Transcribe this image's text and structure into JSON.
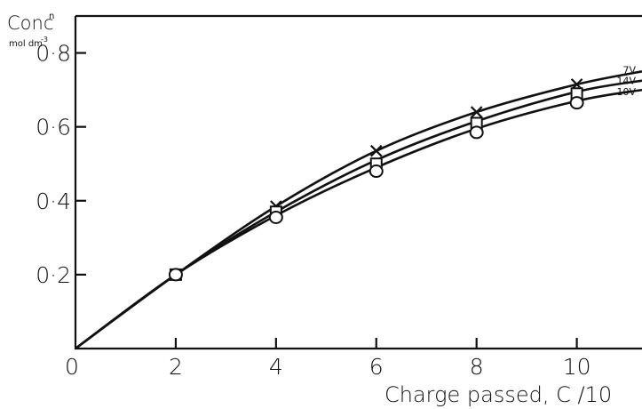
{
  "chart_data": {
    "type": "line",
    "ylabel": "Conc",
    "ylabel_superscript": "n",
    "yunit": "mol dm",
    "yunit_superscript": "-3",
    "xlabel": "Charge passed, C  /10",
    "xlim": [
      0,
      11.3
    ],
    "ylim": [
      0,
      0.9
    ],
    "x_ticks": [
      "0",
      "2",
      "4",
      "6",
      "8",
      "10"
    ],
    "y_ticks": [
      {
        "value": 0.2,
        "label": "0·2"
      },
      {
        "value": 0.4,
        "label": "0·4"
      },
      {
        "value": 0.6,
        "label": "0·6"
      },
      {
        "value": 0.8,
        "label": "0·8"
      }
    ],
    "grid": false,
    "series": [
      {
        "name": "7V",
        "marker": "x",
        "points": [
          {
            "x": 2,
            "y": 0.2
          },
          {
            "x": 4,
            "y": 0.385
          },
          {
            "x": 6,
            "y": 0.535
          },
          {
            "x": 8,
            "y": 0.64
          },
          {
            "x": 10,
            "y": 0.715
          }
        ],
        "curve": [
          {
            "x": 0,
            "y": 0
          },
          {
            "x": 2,
            "y": 0.2
          },
          {
            "x": 4,
            "y": 0.385
          },
          {
            "x": 6,
            "y": 0.535
          },
          {
            "x": 8,
            "y": 0.64
          },
          {
            "x": 10,
            "y": 0.715
          },
          {
            "x": 11.3,
            "y": 0.75
          }
        ]
      },
      {
        "name": "14V",
        "marker": "square",
        "points": [
          {
            "x": 2,
            "y": 0.2
          },
          {
            "x": 4,
            "y": 0.37
          },
          {
            "x": 6,
            "y": 0.5
          },
          {
            "x": 8,
            "y": 0.61
          },
          {
            "x": 10,
            "y": 0.69
          }
        ],
        "curve": [
          {
            "x": 0,
            "y": 0
          },
          {
            "x": 2,
            "y": 0.2
          },
          {
            "x": 4,
            "y": 0.37
          },
          {
            "x": 6,
            "y": 0.51
          },
          {
            "x": 8,
            "y": 0.615
          },
          {
            "x": 10,
            "y": 0.695
          },
          {
            "x": 11.3,
            "y": 0.725
          }
        ]
      },
      {
        "name": "10V",
        "marker": "circle",
        "points": [
          {
            "x": 2,
            "y": 0.2
          },
          {
            "x": 4,
            "y": 0.355
          },
          {
            "x": 6,
            "y": 0.48
          },
          {
            "x": 8,
            "y": 0.585
          },
          {
            "x": 10,
            "y": 0.665
          }
        ],
        "curve": [
          {
            "x": 0,
            "y": 0
          },
          {
            "x": 2,
            "y": 0.2
          },
          {
            "x": 4,
            "y": 0.36
          },
          {
            "x": 6,
            "y": 0.49
          },
          {
            "x": 8,
            "y": 0.595
          },
          {
            "x": 10,
            "y": 0.67
          },
          {
            "x": 11.3,
            "y": 0.7
          }
        ]
      }
    ]
  }
}
